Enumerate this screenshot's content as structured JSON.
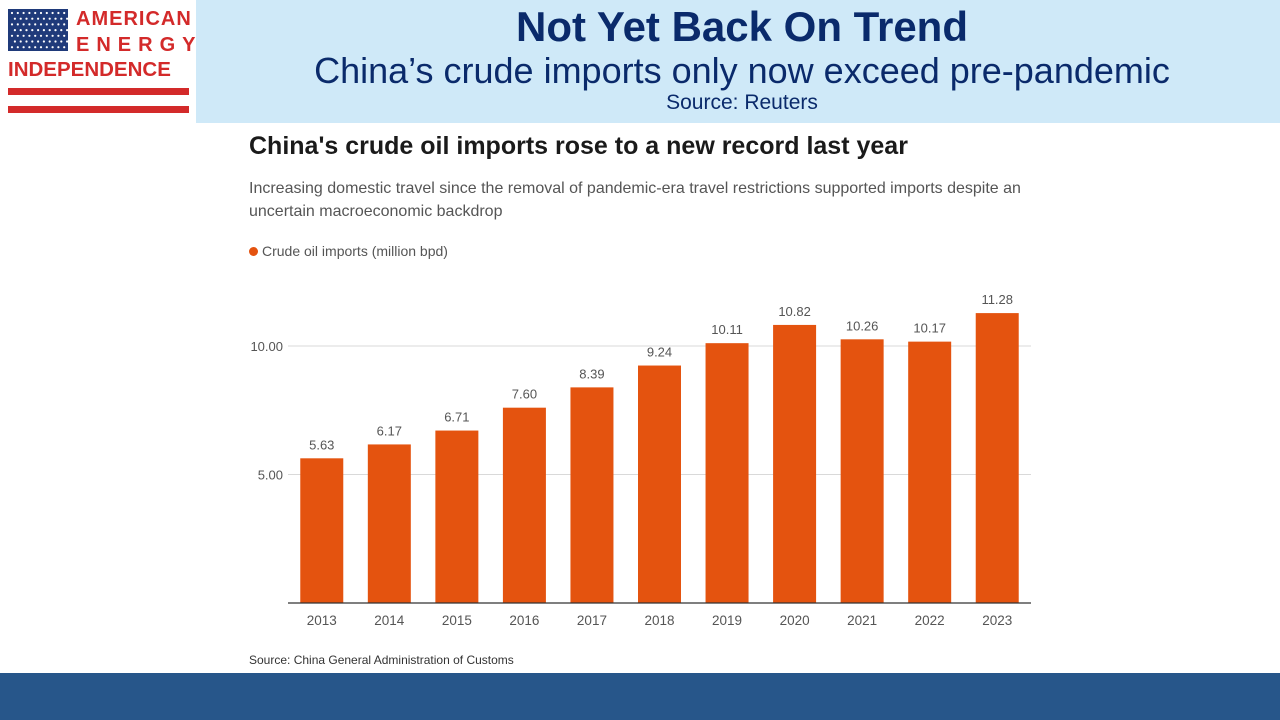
{
  "slide": {
    "title": "Not Yet Back On Trend",
    "subtitle": "China’s crude imports only now exceed pre-pandemic",
    "source": "Source: Reuters"
  },
  "logo": {
    "line1": "AMERICAN",
    "line2": "ENERGY",
    "line3": "INDEPENDENCE"
  },
  "colors": {
    "bar": "#e4530f",
    "header_band": "#cfe9f8",
    "title_text": "#0a2a6b",
    "footer_band": "#27568a",
    "logo_red": "#d32a2a",
    "logo_blue": "#1f3a7a"
  },
  "chart_data": {
    "type": "bar",
    "title": "China's crude oil imports rose to a new record last year",
    "subtitle": "Increasing domestic travel since the removal of pandemic-era travel restrictions supported imports despite an uncertain macroeconomic backdrop",
    "legend": "Crude oil imports (million bpd)",
    "legend_position": "top-left",
    "source": "Source: China General Administration of Customs",
    "categories": [
      "2013",
      "2014",
      "2015",
      "2016",
      "2017",
      "2018",
      "2019",
      "2020",
      "2021",
      "2022",
      "2023"
    ],
    "values": [
      5.63,
      6.17,
      6.71,
      7.6,
      8.39,
      9.24,
      10.11,
      10.82,
      10.26,
      10.17,
      11.28
    ],
    "value_labels": [
      "5.63",
      "6.17",
      "6.71",
      "7.60",
      "8.39",
      "9.24",
      "10.11",
      "10.82",
      "10.26",
      "10.17",
      "11.28"
    ],
    "yticks": [
      5.0,
      10.0
    ],
    "ytick_labels": [
      "5.00",
      "10.00"
    ],
    "ylim": [
      0,
      11.28
    ],
    "grid": true,
    "xlabel": "",
    "ylabel": ""
  }
}
